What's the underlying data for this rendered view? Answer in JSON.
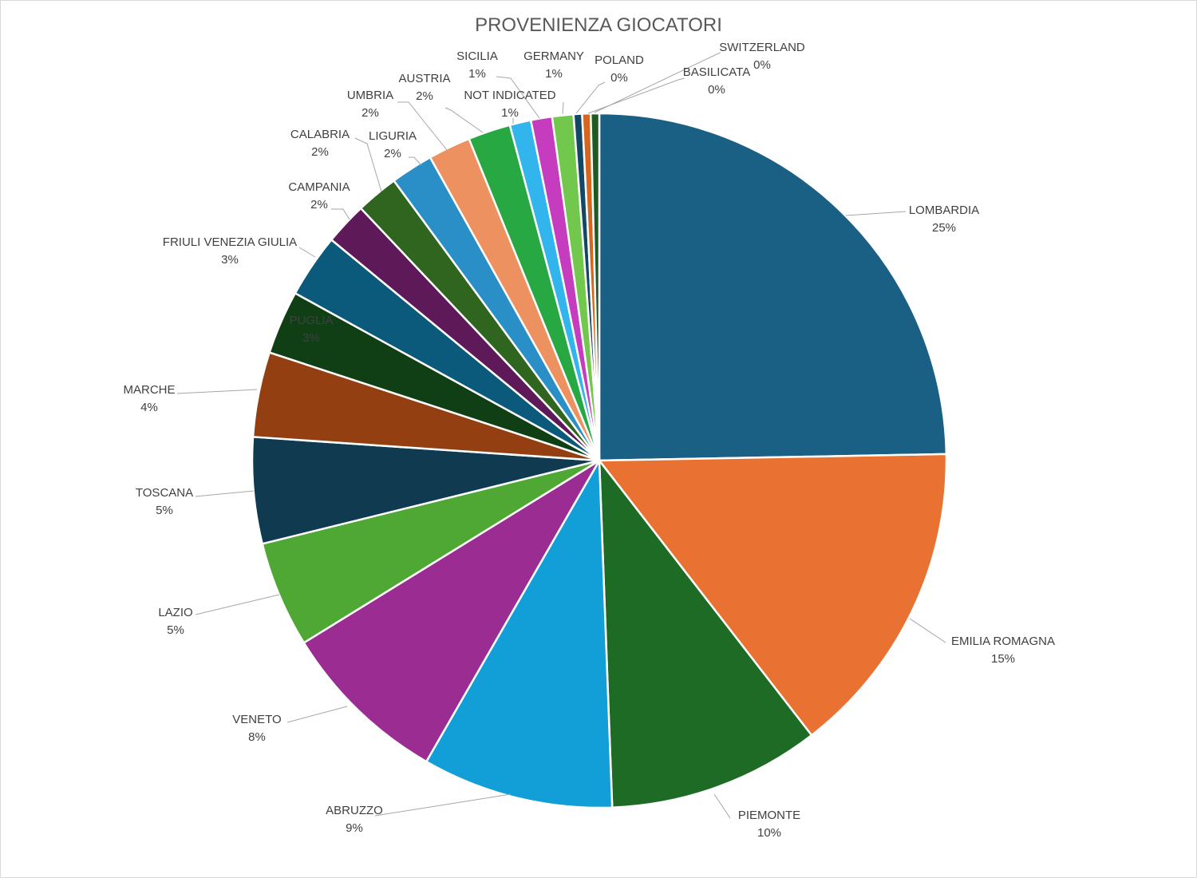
{
  "chart_data": {
    "type": "pie",
    "title": "PROVENIENZA GIOCATORI",
    "slices": [
      {
        "name": "LOMBARDIA",
        "value": 25,
        "label": "25%",
        "color": "#1a5f84"
      },
      {
        "name": "EMILIA ROMAGNA",
        "value": 15,
        "label": "15%",
        "color": "#e97233"
      },
      {
        "name": "PIEMONTE",
        "value": 10,
        "label": "10%",
        "color": "#1e6b25"
      },
      {
        "name": "ABRUZZO",
        "value": 9,
        "label": "9%",
        "color": "#129ed6"
      },
      {
        "name": "VENETO",
        "value": 8,
        "label": "8%",
        "color": "#9b2c91"
      },
      {
        "name": "LAZIO",
        "value": 5,
        "label": "5%",
        "color": "#4fa833"
      },
      {
        "name": "TOSCANA",
        "value": 5,
        "label": "5%",
        "color": "#0f3a50"
      },
      {
        "name": "MARCHE",
        "value": 4,
        "label": "4%",
        "color": "#943f12"
      },
      {
        "name": "PUGLIA",
        "value": 3,
        "label": "3%",
        "color": "#103f16"
      },
      {
        "name": "FRIULI VENEZIA GIULIA",
        "value": 3,
        "label": "3%",
        "color": "#0c5a7b"
      },
      {
        "name": "CAMPANIA",
        "value": 2,
        "label": "2%",
        "color": "#5e1a58"
      },
      {
        "name": "CALABRIA",
        "value": 2,
        "label": "2%",
        "color": "#2f651e"
      },
      {
        "name": "LIGURIA",
        "value": 2,
        "label": "2%",
        "color": "#2a8fc6"
      },
      {
        "name": "UMBRIA",
        "value": 2,
        "label": "2%",
        "color": "#ee9160"
      },
      {
        "name": "AUSTRIA",
        "value": 2,
        "label": "2%",
        "color": "#27a843"
      },
      {
        "name": "NOT INDICATED",
        "value": 1,
        "label": "1%",
        "color": "#32b5ec"
      },
      {
        "name": "SICILIA",
        "value": 1,
        "label": "1%",
        "color": "#c63cbf"
      },
      {
        "name": "GERMANY",
        "value": 1,
        "label": "1%",
        "color": "#71c84c"
      },
      {
        "name": "POLAND",
        "value": 0.4,
        "label": "0%",
        "color": "#124866"
      },
      {
        "name": "BASILICATA",
        "value": 0.4,
        "label": "0%",
        "color": "#d6661e"
      },
      {
        "name": "SWITZERLAND",
        "value": 0.4,
        "label": "0%",
        "color": "#1f5a22"
      }
    ]
  }
}
